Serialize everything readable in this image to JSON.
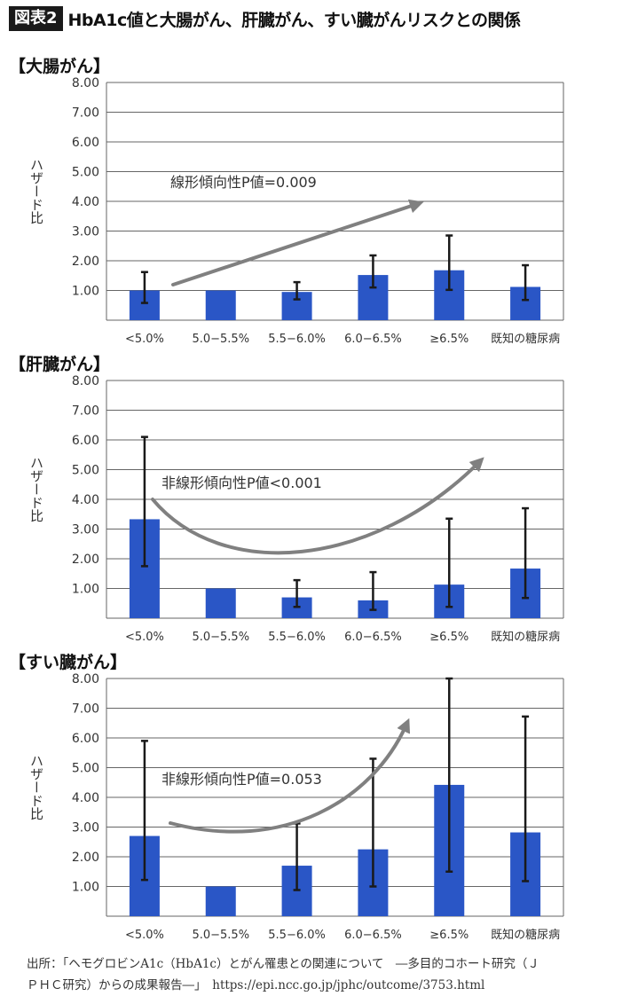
{
  "header": {
    "badge": "図表2",
    "title": "HbA1c値と大腸がん、肝臓がん、すい臓がんリスクとの関係"
  },
  "colors": {
    "bar": "#2a56c6",
    "grid": "#666666",
    "arrow": "#808080",
    "error_bar": "#1a1a1a"
  },
  "chart_data": [
    {
      "type": "bar",
      "title": "【大腸がん】",
      "ylabel": "ハザード比",
      "categories": [
        "<5.0%",
        "5.0−5.5%",
        "5.5−6.0%",
        "6.0−6.5%",
        "≥6.5%",
        "既知の糖尿病"
      ],
      "yticks": [
        "1.00",
        "2.00",
        "3.00",
        "4.00",
        "5.00",
        "6.00",
        "7.00",
        "8.00"
      ],
      "ylim": [
        0,
        8
      ],
      "series": [
        {
          "values": [
            1.0,
            1.0,
            0.95,
            1.52,
            1.68,
            1.12
          ],
          "err_low": [
            0.58,
            1.0,
            0.7,
            1.1,
            1.02,
            0.68
          ],
          "err_high": [
            1.62,
            1.0,
            1.28,
            2.18,
            2.85,
            1.85
          ]
        }
      ],
      "annotation": {
        "text": "線形傾向性P値=0.009",
        "trend": "linear"
      },
      "grid": true
    },
    {
      "type": "bar",
      "title": "【肝臓がん】",
      "ylabel": "ハザード比",
      "categories": [
        "<5.0%",
        "5.0−5.5%",
        "5.5−6.0%",
        "6.0−6.5%",
        "≥6.5%",
        "既知の糖尿病"
      ],
      "yticks": [
        "1.00",
        "2.00",
        "3.00",
        "4.00",
        "5.00",
        "6.00",
        "7.00",
        "8.00"
      ],
      "ylim": [
        0,
        8
      ],
      "series": [
        {
          "values": [
            3.33,
            1.0,
            0.7,
            0.6,
            1.13,
            1.67
          ],
          "err_low": [
            1.75,
            1.0,
            0.38,
            0.28,
            0.38,
            0.68
          ],
          "err_high": [
            6.1,
            1.0,
            1.28,
            1.55,
            3.35,
            3.7
          ]
        }
      ],
      "annotation": {
        "text": "非線形傾向性P値<0.001",
        "trend": "u-shape"
      },
      "grid": true
    },
    {
      "type": "bar",
      "title": "【すい臓がん】",
      "ylabel": "ハザード比",
      "categories": [
        "<5.0%",
        "5.0−5.5%",
        "5.5−6.0%",
        "6.0−6.5%",
        "≥6.5%",
        "既知の糖尿病"
      ],
      "yticks": [
        "1.00",
        "2.00",
        "3.00",
        "4.00",
        "5.00",
        "6.00",
        "7.00",
        "8.00"
      ],
      "ylim": [
        0,
        8
      ],
      "series": [
        {
          "values": [
            2.7,
            1.0,
            1.7,
            2.25,
            4.42,
            2.82
          ],
          "err_low": [
            1.22,
            1.0,
            0.88,
            1.0,
            1.5,
            1.18
          ],
          "err_high": [
            5.9,
            1.0,
            3.12,
            5.3,
            8.0,
            6.72
          ]
        }
      ],
      "annotation": {
        "text": "非線形傾向性P値=0.053",
        "trend": "rising-curve"
      },
      "grid": true
    }
  ],
  "source": {
    "line1": "出所：「ヘモグロビンA1c（HbA1c）とがん罹患との関連について　―多目的コホート研究（Ｊ",
    "line2": "ＰＨＣ研究）からの成果報告―」　https://epi.ncc.go.jp/jphc/outcome/3753.html"
  }
}
